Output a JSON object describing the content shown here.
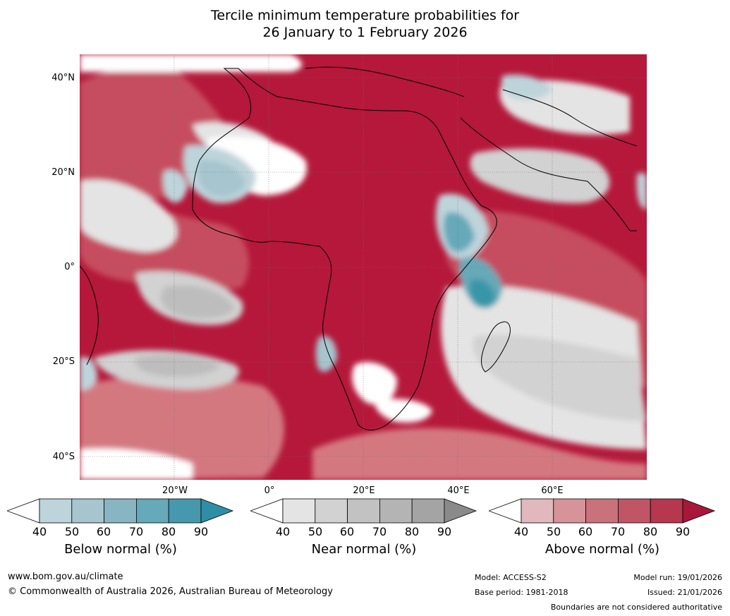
{
  "title_line1": "Tercile minimum temperature probabilities for",
  "title_line2": "26 January to 1 February 2026",
  "map": {
    "lat_labels": [
      "40°N",
      "20°N",
      "0°",
      "20°S",
      "40°S"
    ],
    "lon_labels": [
      "20°W",
      "0°",
      "20°E",
      "40°E",
      "60°E"
    ],
    "colors": {
      "above_80_90": "#b5183a",
      "above_70_80": "#c64d5f",
      "above_60_70": "#d47880",
      "above_50_60": "#e0a5ac",
      "above_40_50": "#ecc9cd",
      "near_40_50": "#e4e4e4",
      "near_50_60": "#d2d2d2",
      "near_60_70": "#bdbdbd",
      "near_70_80": "#a4a4a4",
      "below_40_50": "#bed4db",
      "below_50_60": "#a6c5ce",
      "below_60_70": "#88b5c2",
      "below_70_80": "#66a9b8",
      "below_80_90": "#3896a9"
    }
  },
  "colorbars": [
    {
      "label": "Below normal (%)",
      "ticks": [
        "40",
        "50",
        "60",
        "70",
        "80",
        "90"
      ],
      "colors": [
        "#ffffff",
        "#bed4db",
        "#a6c5ce",
        "#88b5c2",
        "#66a9b8",
        "#4699ad",
        "#2e8ea5"
      ]
    },
    {
      "label": "Near normal (%)",
      "ticks": [
        "40",
        "50",
        "60",
        "70",
        "80",
        "90"
      ],
      "colors": [
        "#ffffff",
        "#e4e4e4",
        "#d2d2d2",
        "#c2c2c2",
        "#b4b4b4",
        "#a4a4a4",
        "#8a8a8a"
      ]
    },
    {
      "label": "Above normal (%)",
      "ticks": [
        "40",
        "50",
        "60",
        "70",
        "80",
        "90"
      ],
      "colors": [
        "#ffffff",
        "#e0b8bd",
        "#d69399",
        "#ca727c",
        "#c05566",
        "#b6374e",
        "#a8163a"
      ]
    }
  ],
  "footer": {
    "website": "www.bom.gov.au/climate",
    "copyright": "© Commonwealth of Australia 2026, Australian Bureau of Meteorology",
    "model": "Model: ACCESS-S2",
    "base_period": "Base period: 1981-2018",
    "model_run": "Model run: 19/01/2026",
    "issued": "Issued: 21/01/2026",
    "disclaimer": "Boundaries are not considered authoritative"
  }
}
